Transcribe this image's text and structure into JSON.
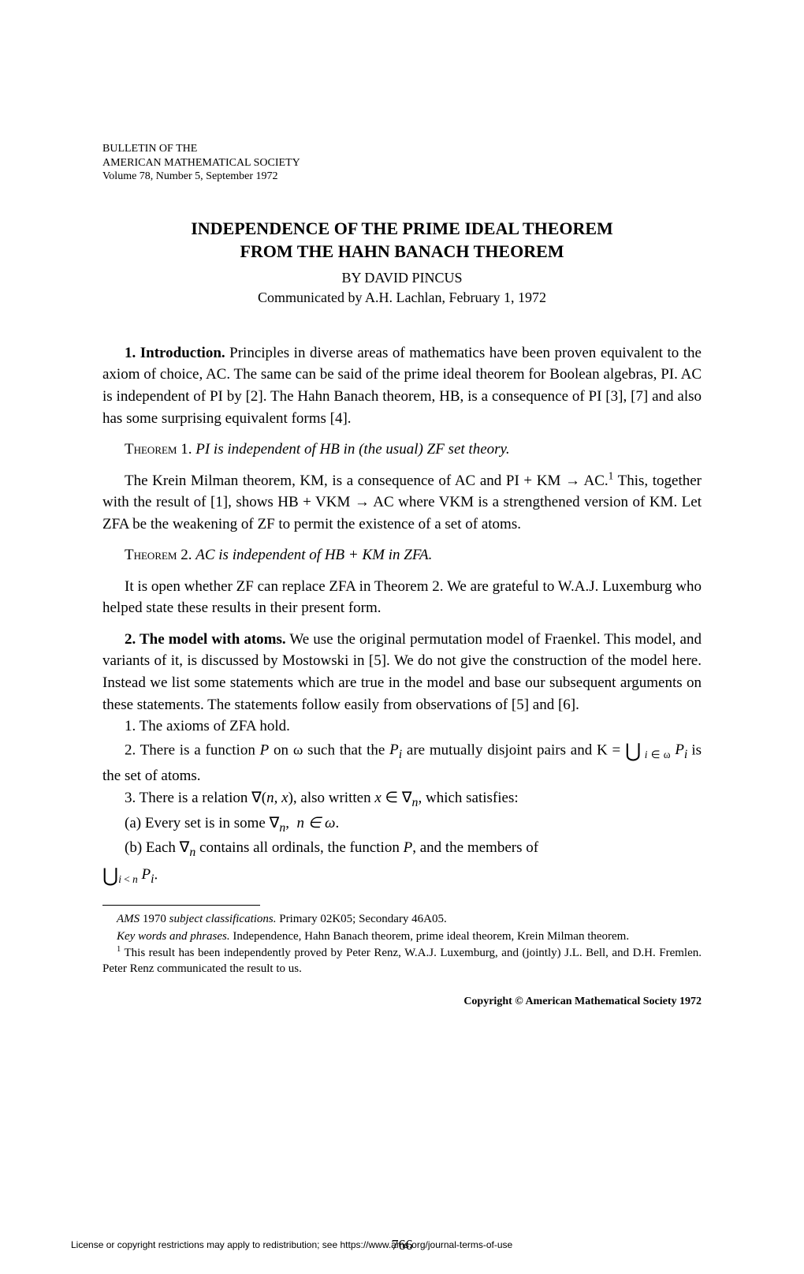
{
  "header": {
    "line1": "BULLETIN OF THE",
    "line2": "AMERICAN MATHEMATICAL SOCIETY",
    "line3": "Volume 78, Number 5, September 1972"
  },
  "title": {
    "line1": "INDEPENDENCE OF THE PRIME IDEAL THEOREM",
    "line2": "FROM THE HAHN BANACH THEOREM"
  },
  "byline": "BY DAVID PINCUS",
  "communicated": "Communicated by A.H. Lachlan, February 1, 1972",
  "section1_label": "1. Introduction.",
  "para1": " Principles in diverse areas of mathematics have been proven equivalent to the axiom of choice, AC. The same can be said of the prime ideal theorem for Boolean algebras, PI. AC is independent of PI by [2]. The Hahn Banach theorem, HB, is a consequence of PI [3], [7] and also has some surprising equivalent forms [4].",
  "theorem1_label": "Theorem",
  "theorem1_num": " 1. ",
  "theorem1_text": "PI is independent of HB in (the usual) ZF set theory.",
  "para2a": "The Krein Milman theorem, KM, is a consequence of AC and PI + KM → AC.",
  "para2b": " This, together with the result of [1], shows HB + VKM → AC where VKM is a strengthened version of KM. Let ZFA be the weakening of ZF to permit the existence of a set of atoms.",
  "theorem2_label": "Theorem",
  "theorem2_num": " 2. ",
  "theorem2_text": "AC is independent of HB + KM in ZFA.",
  "para3": "It is open whether ZF can replace ZFA in Theorem 2. We are grateful to W.A.J. Luxemburg who helped state these results in their present form.",
  "section2_label": "2. The model with atoms.",
  "para4": " We use the original permutation model of Fraenkel. This model, and variants of it, is discussed by Mostowski in [5]. We do not give the construction of the model here. Instead we list some statements which are true in the model and base our subsequent arguments on these statements. The statements follow easily from observations of [5] and [6].",
  "item1": "1. The axioms of ZFA hold.",
  "item2a": "2. There is a function ",
  "item2b": " on ω such that the ",
  "item2c": " are mutually disjoint pairs and K = ",
  "item2d": " is the set of atoms.",
  "item3a": "3. There is a relation ∇(",
  "item3b": "), also written ",
  "item3c": ", which satisfies:",
  "itemA": "(a) Every set is in some ∇",
  "nomega": "n ∈ ω",
  "itemB1": "(b) Each ∇",
  "itemB2": " contains all ordinals, the function ",
  "itemB3": ", and the members of ",
  "footnotes": {
    "ams_label": "AMS",
    "ams_year": " 1970 ",
    "ams_subject": "subject classifications.",
    "ams_text": " Primary 02K05; Secondary 46A05.",
    "keywords_label": "Key words and phrases.",
    "keywords_text": " Independence, Hahn Banach theorem, prime ideal theorem, Krein Milman theorem.",
    "fn1_text": " This result has been independently proved by Peter Renz, W.A.J. Luxemburg, and (jointly) J.L. Bell, and D.H. Fremlen. Peter Renz communicated the result to us."
  },
  "copyright": "Copyright © American Mathematical Society 1972",
  "license": "License or copyright restrictions may apply to redistribution; see https://www.ams.org/journal-terms-of-use",
  "page_number": "766"
}
